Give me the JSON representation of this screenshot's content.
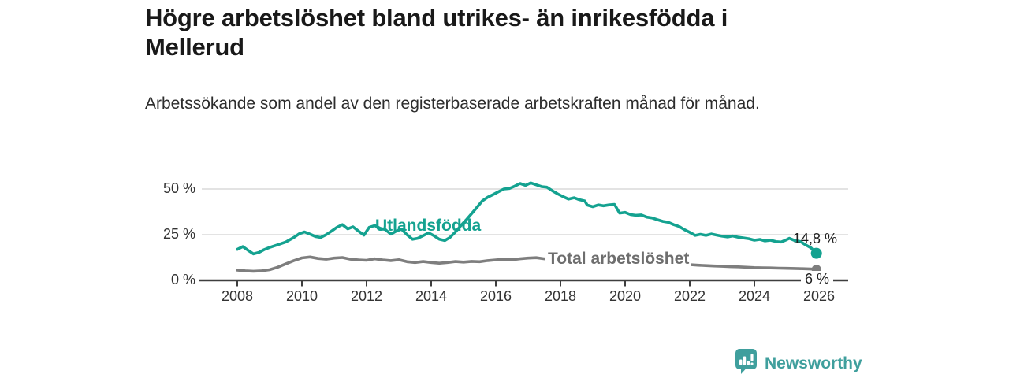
{
  "header": {
    "title": "Högre arbetslöshet bland utrikes- än inrikesfödda i Mellerud",
    "subtitle": "Arbetssökande som andel av den registerbaserade arbetskraften månad för månad."
  },
  "chart_data": {
    "type": "line",
    "title": "Högre arbetslöshet bland utrikes- än inrikesfödda i Mellerud",
    "xlabel": "",
    "ylabel": "",
    "unit": "%",
    "grid": "horizontal",
    "ylim": [
      0,
      58
    ],
    "xlim": [
      2006.9,
      2026.9
    ],
    "x_ticks": [
      2008,
      2010,
      2012,
      2014,
      2016,
      2018,
      2020,
      2022,
      2024,
      2026
    ],
    "y_ticks": [
      {
        "value": 0,
        "label": "0 %"
      },
      {
        "value": 25,
        "label": "25 %"
      },
      {
        "value": 50,
        "label": "50 %"
      }
    ],
    "colors": {
      "accent_teal": "#14a290",
      "line_gray": "#7e7e7e",
      "axis": "#3e3e3e",
      "gridline": "#dadada"
    },
    "series": [
      {
        "name": "Utlandsfödda",
        "color": "#14a290",
        "end_label": "14,8 %",
        "end_value": 14.8,
        "points": [
          [
            2008.0,
            17
          ],
          [
            2008.17,
            18.5
          ],
          [
            2008.33,
            16.5
          ],
          [
            2008.5,
            14.5
          ],
          [
            2008.67,
            15.3
          ],
          [
            2008.83,
            16.8
          ],
          [
            2009.0,
            18
          ],
          [
            2009.25,
            19.5
          ],
          [
            2009.5,
            21
          ],
          [
            2009.75,
            23.5
          ],
          [
            2009.92,
            25.5
          ],
          [
            2010.08,
            26.5
          ],
          [
            2010.25,
            25.3
          ],
          [
            2010.42,
            24
          ],
          [
            2010.58,
            23.5
          ],
          [
            2010.75,
            25
          ],
          [
            2010.92,
            27
          ],
          [
            2011.08,
            29
          ],
          [
            2011.25,
            30.5
          ],
          [
            2011.42,
            28.2
          ],
          [
            2011.58,
            29.3
          ],
          [
            2011.75,
            27
          ],
          [
            2011.92,
            24.8
          ],
          [
            2012.08,
            29
          ],
          [
            2012.25,
            30
          ],
          [
            2012.42,
            28.5
          ],
          [
            2012.58,
            27.8
          ],
          [
            2012.75,
            25.3
          ],
          [
            2012.92,
            27
          ],
          [
            2013.08,
            28
          ],
          [
            2013.25,
            25
          ],
          [
            2013.42,
            22.5
          ],
          [
            2013.58,
            23
          ],
          [
            2013.75,
            24.5
          ],
          [
            2013.92,
            26
          ],
          [
            2014.08,
            24.5
          ],
          [
            2014.25,
            22.5
          ],
          [
            2014.42,
            21.8
          ],
          [
            2014.58,
            23.5
          ],
          [
            2014.75,
            26.5
          ],
          [
            2014.92,
            30
          ],
          [
            2015.08,
            33
          ],
          [
            2015.25,
            36.5
          ],
          [
            2015.42,
            40
          ],
          [
            2015.58,
            43.5
          ],
          [
            2015.75,
            45.5
          ],
          [
            2015.92,
            47
          ],
          [
            2016.08,
            48.5
          ],
          [
            2016.25,
            50
          ],
          [
            2016.42,
            50.3
          ],
          [
            2016.58,
            51.5
          ],
          [
            2016.75,
            53
          ],
          [
            2016.92,
            52
          ],
          [
            2017.08,
            53.3
          ],
          [
            2017.25,
            52.3
          ],
          [
            2017.42,
            51.3
          ],
          [
            2017.58,
            51
          ],
          [
            2017.75,
            49
          ],
          [
            2017.92,
            47.3
          ],
          [
            2018.08,
            45.8
          ],
          [
            2018.25,
            44.5
          ],
          [
            2018.42,
            45.2
          ],
          [
            2018.58,
            44.2
          ],
          [
            2018.75,
            43.5
          ],
          [
            2018.83,
            41.2
          ],
          [
            2019.0,
            40.3
          ],
          [
            2019.17,
            41.3
          ],
          [
            2019.33,
            40.8
          ],
          [
            2019.5,
            41.3
          ],
          [
            2019.67,
            41.6
          ],
          [
            2019.83,
            36.8
          ],
          [
            2020.0,
            37.2
          ],
          [
            2020.17,
            36
          ],
          [
            2020.33,
            35.6
          ],
          [
            2020.5,
            35.8
          ],
          [
            2020.67,
            34.6
          ],
          [
            2020.83,
            34.2
          ],
          [
            2021.0,
            33.2
          ],
          [
            2021.17,
            32.3
          ],
          [
            2021.33,
            31.8
          ],
          [
            2021.5,
            30.5
          ],
          [
            2021.67,
            29.5
          ],
          [
            2021.83,
            27.8
          ],
          [
            2022.0,
            26.3
          ],
          [
            2022.17,
            24.6
          ],
          [
            2022.33,
            25.2
          ],
          [
            2022.5,
            24.6
          ],
          [
            2022.67,
            25.4
          ],
          [
            2022.83,
            24.8
          ],
          [
            2023.0,
            24.2
          ],
          [
            2023.17,
            23.8
          ],
          [
            2023.33,
            24.3
          ],
          [
            2023.5,
            23.6
          ],
          [
            2023.67,
            23.2
          ],
          [
            2023.83,
            22.8
          ],
          [
            2024.0,
            22
          ],
          [
            2024.17,
            22.4
          ],
          [
            2024.33,
            21.6
          ],
          [
            2024.5,
            22
          ],
          [
            2024.67,
            21.2
          ],
          [
            2024.83,
            21
          ],
          [
            2025.0,
            22.3
          ],
          [
            2025.08,
            23
          ],
          [
            2025.25,
            21.8
          ],
          [
            2025.42,
            21.3
          ],
          [
            2025.58,
            19.5
          ],
          [
            2025.75,
            17.8
          ],
          [
            2025.92,
            14.8
          ]
        ]
      },
      {
        "name": "Total arbetslöshet",
        "color": "#7e7e7e",
        "end_label": "6 %",
        "end_value": 6,
        "points": [
          [
            2008.0,
            5.6
          ],
          [
            2008.25,
            5.2
          ],
          [
            2008.5,
            5.0
          ],
          [
            2008.75,
            5.2
          ],
          [
            2009.0,
            5.8
          ],
          [
            2009.25,
            7.2
          ],
          [
            2009.5,
            9
          ],
          [
            2009.75,
            10.8
          ],
          [
            2010.0,
            12.3
          ],
          [
            2010.25,
            12.8
          ],
          [
            2010.5,
            12
          ],
          [
            2010.75,
            11.6
          ],
          [
            2011.0,
            12.2
          ],
          [
            2011.25,
            12.5
          ],
          [
            2011.5,
            11.6
          ],
          [
            2011.75,
            11.2
          ],
          [
            2012.0,
            11
          ],
          [
            2012.25,
            11.8
          ],
          [
            2012.5,
            11.2
          ],
          [
            2012.75,
            10.8
          ],
          [
            2013.0,
            11.3
          ],
          [
            2013.25,
            10.2
          ],
          [
            2013.5,
            9.8
          ],
          [
            2013.75,
            10.3
          ],
          [
            2014.0,
            9.8
          ],
          [
            2014.25,
            9.4
          ],
          [
            2014.5,
            9.8
          ],
          [
            2014.75,
            10.3
          ],
          [
            2015.0,
            10
          ],
          [
            2015.25,
            10.4
          ],
          [
            2015.5,
            10.2
          ],
          [
            2015.75,
            10.8
          ],
          [
            2016.0,
            11.2
          ],
          [
            2016.25,
            11.6
          ],
          [
            2016.5,
            11.3
          ],
          [
            2016.75,
            11.8
          ],
          [
            2017.0,
            12.2
          ],
          [
            2017.25,
            12.4
          ],
          [
            2017.5,
            11.8
          ],
          [
            2017.75,
            11.4
          ],
          [
            2018.0,
            11.2
          ],
          [
            2018.5,
            11.4
          ],
          [
            2019.0,
            11.8
          ],
          [
            2019.5,
            11.2
          ],
          [
            2020.0,
            11
          ],
          [
            2020.5,
            10.4
          ],
          [
            2021.0,
            9.8
          ],
          [
            2021.5,
            9.2
          ],
          [
            2022.0,
            8.6
          ],
          [
            2022.25,
            8.3
          ],
          [
            2022.5,
            8.1
          ],
          [
            2022.75,
            7.9
          ],
          [
            2023.0,
            7.7
          ],
          [
            2023.25,
            7.5
          ],
          [
            2023.5,
            7.4
          ],
          [
            2023.75,
            7.2
          ],
          [
            2024.0,
            7.0
          ],
          [
            2024.25,
            6.9
          ],
          [
            2024.5,
            6.8
          ],
          [
            2024.75,
            6.7
          ],
          [
            2025.0,
            6.6
          ],
          [
            2025.25,
            6.5
          ],
          [
            2025.5,
            6.4
          ],
          [
            2025.75,
            6.2
          ],
          [
            2025.92,
            6.0
          ]
        ]
      }
    ]
  },
  "footer": {
    "brand": "Newsworthy",
    "logo_icon": "bar-chart-speech-bubble-icon",
    "brand_color": "#3f9f9d"
  }
}
